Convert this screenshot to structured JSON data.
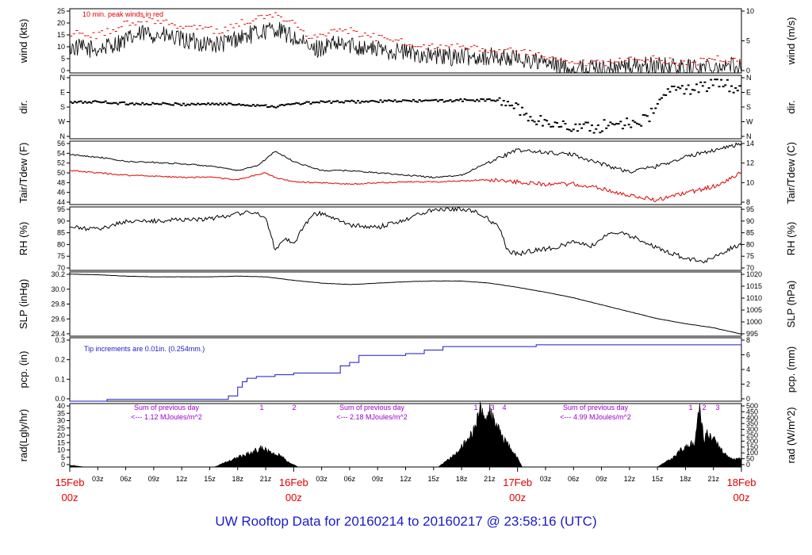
{
  "footer": {
    "title": "UW Rooftop Data for 20160214  to  20160217 @ 23:58:16  (UTC)"
  },
  "colors": {
    "obs": "#000000",
    "peak": "#e00000",
    "dewpoint": "#e00000",
    "precip": "#1a1acc",
    "note": "#9900cc",
    "day_label": "#e00000",
    "footer": "#1a1acc"
  },
  "chart_data": {
    "type": "line",
    "time_axis": {
      "start": "2016-02-15 00z",
      "end": "2016-02-18 00z",
      "range_hours": [
        0,
        72
      ],
      "hour_ticks": [
        "03z",
        "06z",
        "09z",
        "12z",
        "15z",
        "18z",
        "21z",
        "03z",
        "06z",
        "09z",
        "12z",
        "15z",
        "18z",
        "21z",
        "03z",
        "06z",
        "09z",
        "12z",
        "15z",
        "18z",
        "21z"
      ],
      "day_labels": [
        {
          "date": "15Feb",
          "time": "00z"
        },
        {
          "date": "16Feb",
          "time": "00z"
        },
        {
          "date": "17Feb",
          "time": "00z"
        },
        {
          "date": "18Feb",
          "time": "00z"
        }
      ]
    },
    "panels": [
      {
        "id": "wind",
        "ylabel_left": "wind (kts)",
        "ylabel_right": "wind (m/s)",
        "left_ticks": [
          "0",
          "5",
          "10",
          "15",
          "20",
          "25"
        ],
        "right_ticks": [
          "0",
          "5",
          "10"
        ],
        "ylim": [
          0,
          27.5
        ],
        "annotation": "10 min. peak winds in red",
        "series": [
          {
            "name": "wind speed",
            "hours": [
              0,
              3,
              6,
              8,
              10,
              12,
              14,
              16,
              18,
              20,
              22,
              24,
              26,
              28,
              30,
              33,
              36,
              39,
              42,
              45,
              48,
              50,
              52,
              54,
              56,
              58,
              60,
              63,
              66,
              69,
              72
            ],
            "values": [
              11,
              10,
              14,
              17,
              16,
              14,
              13,
              12,
              15,
              17,
              19,
              15,
              10,
              12,
              12,
              10,
              9,
              7,
              7,
              7,
              6,
              5,
              3,
              2,
              2,
              2,
              3,
              3,
              2,
              3,
              3
            ]
          },
          {
            "name": "10 min. peak winds",
            "hours": [
              0,
              3,
              6,
              8,
              10,
              12,
              14,
              16,
              18,
              20,
              22,
              24,
              26,
              28,
              30,
              33,
              36,
              39,
              42,
              45,
              48,
              50,
              52,
              54,
              56,
              58,
              60,
              63,
              66,
              69,
              72
            ],
            "values": [
              17,
              16,
              21,
              23,
              22,
              20,
              19,
              18,
              21,
              23,
              25,
              21,
              15,
              18,
              18,
              15,
              13,
              11,
              11,
              10,
              9,
              8,
              5,
              4,
              4,
              4,
              6,
              6,
              4,
              6,
              5
            ]
          }
        ]
      },
      {
        "id": "direction",
        "ylabel_left": "dir.",
        "ylabel_right": "dir.",
        "left_ticks": [
          "N",
          "W",
          "S",
          "E",
          "N"
        ],
        "right_ticks": [
          "N",
          "W",
          "S",
          "E",
          "N"
        ],
        "ylim": [
          0,
          360
        ],
        "series": [
          {
            "name": "wind direction (deg)",
            "hours": [
              0,
              3,
              6,
              9,
              12,
              15,
              18,
              21,
              22,
              24,
              27,
              30,
              33,
              36,
              39,
              42,
              45,
              47,
              48,
              49,
              50,
              51,
              52,
              54,
              56,
              58,
              60,
              62,
              64,
              66,
              68,
              70,
              72
            ],
            "values": [
              205,
              210,
              200,
              198,
              195,
              198,
              195,
              188,
              182,
              198,
              208,
              210,
              212,
              215,
              215,
              218,
              220,
              205,
              170,
              130,
              110,
              90,
              80,
              70,
              60,
              80,
              95,
              110,
              270,
              280,
              300,
              310,
              280
            ]
          }
        ]
      },
      {
        "id": "temperature",
        "ylabel_left": "Tair/Tdew (F)",
        "ylabel_right": "Tair/Tdew (C)",
        "left_ticks": [
          "44",
          "46",
          "48",
          "50",
          "52",
          "54",
          "56"
        ],
        "right_ticks": [
          "8",
          "10",
          "12",
          "14"
        ],
        "ylim": [
          43,
          57
        ],
        "series": [
          {
            "name": "Tair",
            "hours": [
              0,
              3,
              6,
              9,
              12,
              15,
              18,
              20,
              21,
              22,
              24,
              27,
              30,
              33,
              36,
              39,
              42,
              45,
              48,
              51,
              54,
              57,
              60,
              63,
              66,
              69,
              72
            ],
            "values": [
              54,
              53.5,
              52.5,
              52.3,
              52,
              51.5,
              50.5,
              51.5,
              53,
              54.8,
              52.5,
              50.5,
              50.5,
              50,
              49.5,
              49,
              49.5,
              52.5,
              55,
              54.5,
              54,
              52,
              50.2,
              51.5,
              53.5,
              55,
              56.5
            ]
          },
          {
            "name": "Tdew",
            "hours": [
              0,
              3,
              6,
              9,
              12,
              15,
              18,
              20,
              21,
              22,
              24,
              27,
              30,
              33,
              36,
              39,
              42,
              45,
              48,
              51,
              54,
              57,
              60,
              63,
              66,
              69,
              72
            ],
            "values": [
              50.5,
              50,
              49.5,
              49.3,
              49,
              49,
              48.5,
              49.5,
              50,
              49,
              48,
              47.8,
              47.5,
              47.8,
              48,
              48,
              48.2,
              48.5,
              48,
              47.5,
              47.5,
              46.5,
              45,
              44,
              45.5,
              47,
              50
            ]
          }
        ]
      },
      {
        "id": "humidity",
        "ylabel_left": "RH (%)",
        "ylabel_right": "RH (%)",
        "left_ticks": [
          "70",
          "75",
          "80",
          "85",
          "90",
          "95"
        ],
        "right_ticks": [
          "70",
          "75",
          "80",
          "85",
          "90",
          "95"
        ],
        "ylim": [
          67,
          98
        ],
        "series": [
          {
            "name": "RH",
            "hours": [
              0,
              3,
              6,
              9,
              12,
              15,
              18,
              20,
              21,
              22,
              23,
              24,
              25,
              26,
              27,
              28,
              30,
              33,
              36,
              39,
              42,
              44,
              46,
              47,
              48,
              50,
              52,
              54,
              56,
              58,
              60,
              62,
              64,
              66,
              68,
              70,
              72
            ],
            "values": [
              88,
              87,
              91,
              91,
              92,
              92,
              95,
              95,
              93,
              77,
              83,
              80,
              88,
              94,
              95,
              93,
              89,
              88,
              92,
              97,
              97,
              95,
              88,
              76,
              75,
              77,
              78,
              81,
              79,
              86,
              84,
              80,
              76,
              73,
              71,
              76,
              80
            ]
          }
        ]
      },
      {
        "id": "pressure",
        "ylabel_left": "SLP (inHg)",
        "ylabel_right": "SLP (hPa)",
        "left_ticks": [
          "29.4",
          "29.6",
          "29.8",
          "30.0",
          "30.2"
        ],
        "right_ticks": [
          "995",
          "1000",
          "1005",
          "1010",
          "1015",
          "1020"
        ],
        "ylim": [
          29.3,
          30.22
        ],
        "series": [
          {
            "name": "SLP",
            "hours": [
              0,
              3,
              6,
              9,
              12,
              15,
              18,
              21,
              24,
              27,
              30,
              33,
              36,
              39,
              42,
              45,
              48,
              51,
              54,
              57,
              60,
              63,
              66,
              69,
              72
            ],
            "values": [
              30.19,
              30.18,
              30.16,
              30.15,
              30.15,
              30.15,
              30.16,
              30.15,
              30.1,
              30.06,
              30.04,
              30.06,
              30.08,
              30.09,
              30.09,
              30.06,
              30.0,
              29.93,
              29.85,
              29.75,
              29.65,
              29.55,
              29.48,
              29.42,
              29.33
            ]
          }
        ]
      },
      {
        "id": "precipitation",
        "ylabel_left": "pcp. (in)",
        "ylabel_right": "pcp. (mm)",
        "left_ticks": [
          "0.0",
          "0.1",
          "0.2",
          "0.3"
        ],
        "right_ticks": [
          "0",
          "2",
          "4",
          "6",
          "8"
        ],
        "ylim": [
          0,
          0.36
        ],
        "annotation": "Tip increments are 0.01in. (0.254mm.)",
        "series": [
          {
            "name": "accumulated precipitation",
            "step": true,
            "hours": [
              0,
              4,
              16,
              17,
              18,
              18.5,
              19,
              20,
              22,
              24,
              28,
              29,
              30,
              31,
              36,
              38,
              40,
              50,
              71.5,
              72
            ],
            "values": [
              0,
              0.01,
              0.01,
              0.03,
              0.08,
              0.11,
              0.13,
              0.14,
              0.15,
              0.16,
              0.16,
              0.2,
              0.22,
              0.26,
              0.27,
              0.29,
              0.31,
              0.32,
              0.32,
              0.35
            ]
          }
        ]
      },
      {
        "id": "radiation",
        "type": "area",
        "ylabel_left": "rad(Lgly/hr)",
        "ylabel_right": "rad (W/m^2)",
        "left_ticks": [
          "0",
          "5",
          "10",
          "15",
          "20",
          "25",
          "30",
          "35",
          "40"
        ],
        "right_ticks": [
          "0",
          "50",
          "100",
          "150",
          "200",
          "250",
          "300",
          "350",
          "400",
          "450",
          "500"
        ],
        "ylim": [
          0,
          44
        ],
        "annotations": [
          {
            "line1": "Sum of previous day",
            "line2": "<--- 1.12 MJoules/m^2"
          },
          {
            "line1": "Sum of previous day",
            "line2": "<--- 2.18 MJoules/m^2"
          },
          {
            "line1": "Sum of previous day",
            "line2": "<--- 4.99 MJoules/m^2"
          }
        ],
        "peak_markers": [
          "1",
          "2",
          "1",
          "3",
          "4",
          "1",
          "2",
          "3"
        ],
        "series": [
          {
            "name": "solar radiation",
            "hours": [
              0,
              0.5,
              1,
              1.5,
              15.5,
              17,
              19,
              20.5,
              21.5,
              22.5,
              23.5,
              24.5,
              39.5,
              41,
              42.5,
              43.5,
              44,
              44.5,
              45,
              45.5,
              46,
              47,
              48,
              48.5,
              63,
              64.5,
              66,
              67,
              67.5,
              68,
              68.5,
              70,
              71,
              72
            ],
            "values": [
              1,
              1,
              0.5,
              0,
              0,
              4,
              9,
              13,
              10,
              8,
              3,
              0,
              0,
              7,
              18,
              27,
              44,
              30,
              38,
              30,
              25,
              15,
              6,
              0,
              0,
              6,
              14,
              17,
              43,
              20,
              24,
              10,
              5,
              6
            ]
          }
        ]
      }
    ]
  }
}
